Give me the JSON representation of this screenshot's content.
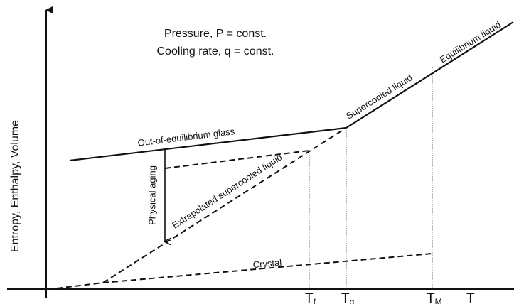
{
  "conditions": [
    "Pressure, P = const.",
    "Cooling rate, q = const."
  ],
  "curves": {
    "equilibrium": "Equilibrium liquid",
    "supercooled": "Supercooled liquid",
    "glass": "Out-of-equilibrium glass",
    "extrapolated": "Extrapolated supercooled liquid",
    "aging": "Physical aging",
    "crystal": "Crystal"
  },
  "y_axis_label": "Entropy, Enthalpy, Volume",
  "x_ticks": [
    {
      "main": "T",
      "sub": "f"
    },
    {
      "main": "T",
      "sub": "g"
    },
    {
      "main": "T",
      "sub": "M"
    }
  ],
  "x_axis_label": "T"
}
